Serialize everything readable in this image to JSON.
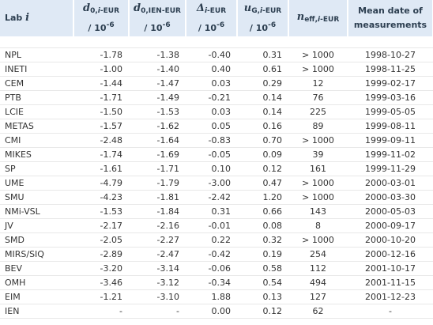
{
  "table": {
    "header": [
      [
        [
          {
            "text": "Lab ",
            "style": ""
          },
          {
            "text": "i",
            "style": "i"
          }
        ]
      ],
      [
        [
          {
            "text": "d",
            "style": "i"
          },
          {
            "text": "0,",
            "style": "sub"
          },
          {
            "text": "i",
            "style": "subi"
          },
          {
            "text": "-EUR",
            "style": "sub"
          }
        ],
        [
          {
            "text": "/ 10",
            "style": ""
          },
          {
            "text": "-6",
            "style": "sup"
          }
        ]
      ],
      [
        [
          {
            "text": "d",
            "style": "i"
          },
          {
            "text": "0,IEN-EUR",
            "style": "sub"
          }
        ],
        [
          {
            "text": "/ 10",
            "style": ""
          },
          {
            "text": "-6",
            "style": "sup"
          }
        ]
      ],
      [
        [
          {
            "text": "Δ",
            "style": "i"
          },
          {
            "text": "i",
            "style": "subi"
          },
          {
            "text": "-EUR",
            "style": "sub"
          }
        ],
        [
          {
            "text": "/ 10",
            "style": ""
          },
          {
            "text": "-6",
            "style": "sup"
          }
        ]
      ],
      [
        [
          {
            "text": "u",
            "style": "i"
          },
          {
            "text": "G,",
            "style": "sub"
          },
          {
            "text": "i",
            "style": "subi"
          },
          {
            "text": "-EUR",
            "style": "sub"
          }
        ],
        [
          {
            "text": "/ 10",
            "style": ""
          },
          {
            "text": "-6",
            "style": "sup"
          }
        ]
      ],
      [
        [
          {
            "text": "n",
            "style": "i"
          },
          {
            "text": "eff,",
            "style": "sub"
          },
          {
            "text": "i",
            "style": "subi"
          },
          {
            "text": "-EUR",
            "style": "sub"
          }
        ]
      ],
      [
        [
          {
            "text": "Mean date of",
            "style": ""
          }
        ],
        [
          {
            "text": "measurements",
            "style": ""
          }
        ]
      ]
    ],
    "rows": [
      [
        "NPL",
        "-1.78",
        "-1.38",
        "-0.40",
        "0.31",
        "> 1000",
        "1998-10-27"
      ],
      [
        "INETI",
        "-1.00",
        "-1.40",
        "0.40",
        "0.61",
        "> 1000",
        "1998-11-25"
      ],
      [
        "CEM",
        "-1.44",
        "-1.47",
        "0.03",
        "0.29",
        "12",
        "1999-02-17"
      ],
      [
        "PTB",
        "-1.71",
        "-1.49",
        "-0.21",
        "0.14",
        "76",
        "1999-03-16"
      ],
      [
        "LCIE",
        "-1.50",
        "-1.53",
        "0.03",
        "0.14",
        "225",
        "1999-05-05"
      ],
      [
        "METAS",
        "-1.57",
        "-1.62",
        "0.05",
        "0.16",
        "89",
        "1999-08-11"
      ],
      [
        "CMI",
        "-2.48",
        "-1.64",
        "-0.83",
        "0.70",
        "> 1000",
        "1999-09-11"
      ],
      [
        "MIKES",
        "-1.74",
        "-1.69",
        "-0.05",
        "0.09",
        "39",
        "1999-11-02"
      ],
      [
        "SP",
        "-1.61",
        "-1.71",
        "0.10",
        "0.12",
        "161",
        "1999-11-29"
      ],
      [
        "UME",
        "-4.79",
        "-1.79",
        "-3.00",
        "0.47",
        "> 1000",
        "2000-03-01"
      ],
      [
        "SMU",
        "-4.23",
        "-1.81",
        "-2.42",
        "1.20",
        "> 1000",
        "2000-03-30"
      ],
      [
        "NMi-VSL",
        "-1.53",
        "-1.84",
        "0.31",
        "0.66",
        "143",
        "2000-05-03"
      ],
      [
        "JV",
        "-2.17",
        "-2.16",
        "-0.01",
        "0.08",
        "8",
        "2000-09-17"
      ],
      [
        "SMD",
        "-2.05",
        "-2.27",
        "0.22",
        "0.32",
        "> 1000",
        "2000-10-20"
      ],
      [
        "MIRS/SIQ",
        "-2.89",
        "-2.47",
        "-0.42",
        "0.19",
        "254",
        "2000-12-16"
      ],
      [
        "BEV",
        "-3.20",
        "-3.14",
        "-0.06",
        "0.58",
        "112",
        "2001-10-17"
      ],
      [
        "OMH",
        "-3.46",
        "-3.12",
        "-0.34",
        "0.54",
        "494",
        "2001-11-15"
      ],
      [
        "EIM",
        "-1.21",
        "-3.10",
        "1.88",
        "0.13",
        "127",
        "2001-12-23"
      ],
      [
        "IEN",
        "-",
        "-",
        "0.00",
        "0.12",
        "62",
        "-"
      ]
    ]
  }
}
